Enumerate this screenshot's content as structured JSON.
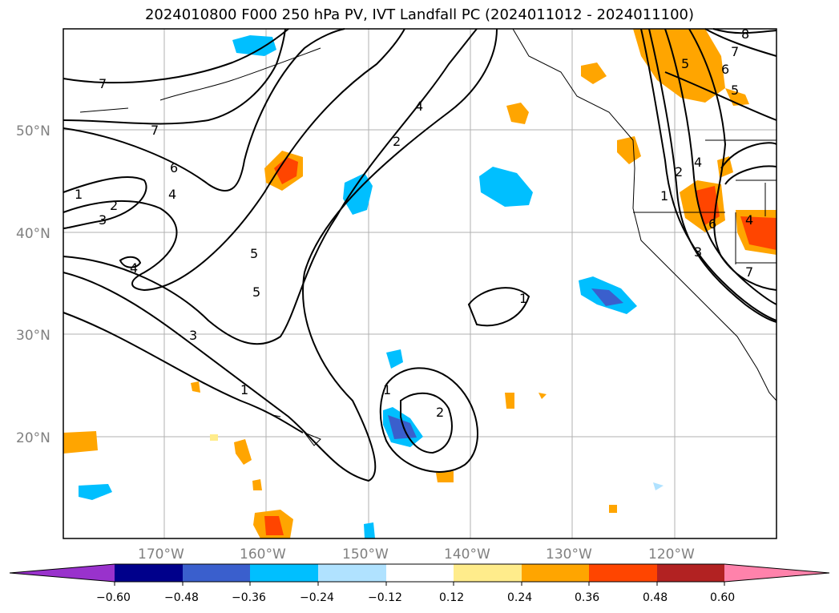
{
  "title": "2024010800 F000 250 hPa PV, IVT Landfall PC (2024011012 - 2024011100)",
  "map": {
    "lat_labels": [
      "50°N",
      "40°N",
      "30°N",
      "20°N"
    ],
    "lon_labels": [
      "170°W",
      "160°W",
      "150°W",
      "140°W",
      "130°W",
      "120°W"
    ],
    "grid": true
  },
  "contour_labels": [
    "7",
    "7",
    "6",
    "4",
    "5",
    "4",
    "2",
    "1",
    "2",
    "3",
    "4",
    "5",
    "3",
    "1",
    "1",
    "2",
    "1",
    "8",
    "7",
    "6",
    "5",
    "5",
    "2",
    "4",
    "1",
    "6",
    "3",
    "7",
    "4"
  ],
  "colorbar": {
    "ticks": [
      "−0.60",
      "−0.48",
      "−0.36",
      "−0.24",
      "−0.12",
      "0.12",
      "0.24",
      "0.36",
      "0.48",
      "0.60"
    ],
    "colors": {
      "under": "#9932cc",
      "c1": "#00008b",
      "c2": "#3a5fcd",
      "c3": "#00bfff",
      "c4": "#b0e2ff",
      "c5": "#ffffff",
      "c6": "#ffec8b",
      "c7": "#ffa500",
      "c8": "#ff4500",
      "c9": "#b22222",
      "over": "#ff82ab"
    }
  }
}
